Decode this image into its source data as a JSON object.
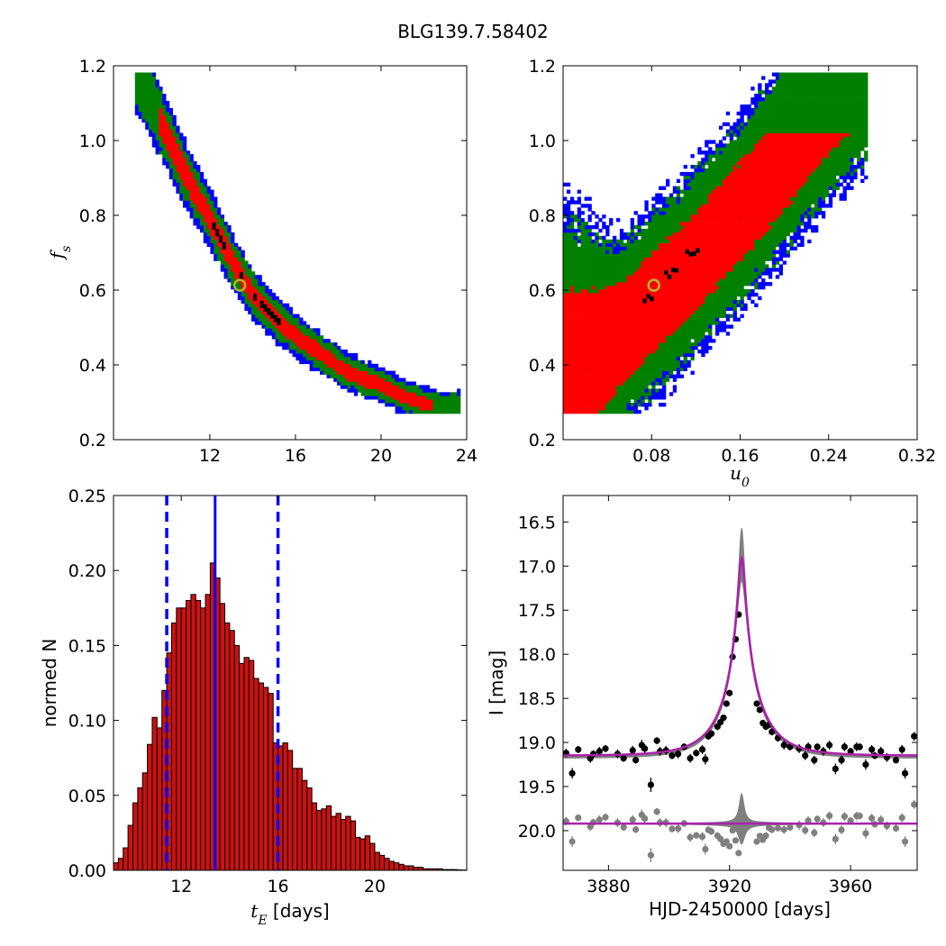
{
  "figure_title": "BLG139.7.58402",
  "colors": {
    "sigma1": "#ff0000",
    "sigma2": "#008000",
    "sigma3": "#0000ff",
    "best": "#000000",
    "marker_edge": "#b5b52a",
    "hist": "#cc1111",
    "median": "#0000ff",
    "model": "#aa22aa",
    "band": "#808080",
    "data": "#000000",
    "resid": "#808080"
  },
  "chart_data": [
    {
      "type": "heatmap",
      "panel": "top-left",
      "xlabel": "",
      "ylabel": "f_s",
      "xlim": [
        7.5,
        24
      ],
      "ylim": [
        0.2,
        1.2
      ],
      "xticks": [
        "12",
        "16",
        "20",
        "24"
      ],
      "yticks": [
        "0.2",
        "0.4",
        "0.6",
        "0.8",
        "1.0",
        "1.2"
      ],
      "relation": "f_s ≈ 0.000006·tE^3 + 0.0033·tE^2 − 0.1656·tE + 2.3044 (ridge)",
      "ridge_points": [
        [
          8.5,
          1.18
        ],
        [
          10.0,
          1.0
        ],
        [
          11.0,
          0.88
        ],
        [
          12.0,
          0.78
        ],
        [
          13.0,
          0.67
        ],
        [
          14.0,
          0.58
        ],
        [
          15.0,
          0.52
        ],
        [
          16.0,
          0.47
        ],
        [
          17.0,
          0.43
        ],
        [
          18.0,
          0.39
        ],
        [
          19.0,
          0.36
        ],
        [
          20.0,
          0.34
        ],
        [
          21.0,
          0.31
        ],
        [
          22.0,
          0.29
        ],
        [
          23.0,
          0.28
        ]
      ],
      "best_fit": {
        "tE": 13.4,
        "f_s": 0.613
      }
    },
    {
      "type": "heatmap",
      "panel": "top-right",
      "xlabel": "u_0",
      "ylabel": "",
      "xlim": [
        0.0,
        0.32
      ],
      "ylim": [
        0.2,
        1.2
      ],
      "xticks": [
        "0.08",
        "0.16",
        "0.24",
        "0.32"
      ],
      "yticks": [
        "0.2",
        "0.4",
        "0.6",
        "0.8",
        "1.0",
        "1.2"
      ],
      "ridge_points": [
        [
          0.0,
          0.36
        ],
        [
          0.04,
          0.45
        ],
        [
          0.08,
          0.56
        ],
        [
          0.12,
          0.68
        ],
        [
          0.16,
          0.81
        ],
        [
          0.2,
          0.95
        ],
        [
          0.24,
          1.1
        ],
        [
          0.27,
          1.18
        ]
      ],
      "best_fit": {
        "u0": 0.082,
        "f_s": 0.613
      }
    },
    {
      "type": "bar",
      "panel": "bottom-left",
      "xlabel": "t_E [days]",
      "ylabel": "normed N",
      "xlim": [
        9.2,
        23.8
      ],
      "ylim": [
        0.0,
        0.25
      ],
      "xticks": [
        "12",
        "16",
        "20"
      ],
      "yticks": [
        "0.00",
        "0.05",
        "0.10",
        "0.15",
        "0.20",
        "0.25"
      ],
      "bin_start": 9.2,
      "bin_width": 0.2,
      "values": [
        0.005,
        0.008,
        0.015,
        0.03,
        0.045,
        0.055,
        0.065,
        0.084,
        0.102,
        0.095,
        0.12,
        0.145,
        0.165,
        0.175,
        0.175,
        0.18,
        0.184,
        0.18,
        0.175,
        0.184,
        0.205,
        0.195,
        0.178,
        0.165,
        0.16,
        0.15,
        0.138,
        0.142,
        0.14,
        0.128,
        0.125,
        0.122,
        0.118,
        0.085,
        0.083,
        0.085,
        0.08,
        0.068,
        0.068,
        0.06,
        0.055,
        0.045,
        0.04,
        0.041,
        0.043,
        0.036,
        0.038,
        0.034,
        0.036,
        0.033,
        0.022,
        0.021,
        0.023,
        0.018,
        0.012,
        0.01,
        0.008,
        0.006,
        0.005,
        0.004,
        0.003,
        0.003,
        0.002,
        0.002,
        0.001,
        0.001,
        0.001,
        0.001,
        0.0005,
        0.0005,
        0.0005,
        0.0003,
        0.0002
      ],
      "median": 13.4,
      "interval": [
        11.4,
        16.0
      ]
    },
    {
      "type": "line",
      "panel": "bottom-right",
      "xlabel": "HJD-2450000 [days]",
      "ylabel": "I [mag]",
      "xlim": [
        3865,
        3982
      ],
      "ylim": [
        20.45,
        16.2
      ],
      "y_inverted": true,
      "xticks": [
        "3880",
        "3920",
        "3960"
      ],
      "yticks": [
        "16.5",
        "17.0",
        "17.5",
        "18.0",
        "18.5",
        "19.0",
        "19.5",
        "20.0"
      ],
      "model": {
        "t0": 3924.0,
        "tE": 13.4,
        "u0": 0.082,
        "f_s": 0.613,
        "baseline": 19.15,
        "peak": 16.93
      },
      "band_peak": 16.2,
      "residual_offset": 19.92,
      "observations": [
        [
          3866,
          19.12,
          0.05
        ],
        [
          3868,
          19.35,
          0.06
        ],
        [
          3870,
          19.08,
          0.04
        ],
        [
          3874,
          19.18,
          0.05
        ],
        [
          3875,
          19.13,
          0.04
        ],
        [
          3877,
          19.1,
          0.05
        ],
        [
          3879,
          19.07,
          0.04
        ],
        [
          3883,
          19.13,
          0.05
        ],
        [
          3885,
          19.18,
          0.04
        ],
        [
          3888,
          19.09,
          0.05
        ],
        [
          3889,
          19.2,
          0.04
        ],
        [
          3891,
          19.03,
          0.06
        ],
        [
          3892,
          19.07,
          0.05
        ],
        [
          3894,
          19.48,
          0.08
        ],
        [
          3896,
          18.98,
          0.04
        ],
        [
          3897,
          19.1,
          0.05
        ],
        [
          3899,
          19.09,
          0.05
        ],
        [
          3901,
          19.15,
          0.04
        ],
        [
          3903,
          19.13,
          0.05
        ],
        [
          3905,
          19.05,
          0.04
        ],
        [
          3907,
          19.18,
          0.05
        ],
        [
          3909,
          19.12,
          0.04
        ],
        [
          3911,
          19.08,
          0.05
        ],
        [
          3912,
          19.19,
          0.06
        ],
        [
          3913,
          18.93,
          0.04
        ],
        [
          3914,
          18.9,
          0.04
        ],
        [
          3916,
          18.82,
          0.04
        ],
        [
          3917,
          18.77,
          0.04
        ],
        [
          3918,
          18.72,
          0.03
        ],
        [
          3919,
          18.56,
          0.03
        ],
        [
          3920,
          18.44,
          0.03
        ],
        [
          3921,
          18.03,
          0.03
        ],
        [
          3922,
          17.83,
          0.03
        ],
        [
          3923,
          17.55,
          0.03
        ],
        [
          3929,
          18.56,
          0.03
        ],
        [
          3930,
          18.63,
          0.03
        ],
        [
          3931,
          18.78,
          0.03
        ],
        [
          3932,
          18.82,
          0.04
        ],
        [
          3933,
          18.8,
          0.04
        ],
        [
          3934,
          18.88,
          0.04
        ],
        [
          3936,
          18.95,
          0.04
        ],
        [
          3938,
          19.03,
          0.05
        ],
        [
          3940,
          19.05,
          0.04
        ],
        [
          3943,
          19.07,
          0.05
        ],
        [
          3945,
          19.15,
          0.05
        ],
        [
          3946,
          19.05,
          0.05
        ],
        [
          3948,
          19.2,
          0.05
        ],
        [
          3949,
          19.05,
          0.04
        ],
        [
          3951,
          19.1,
          0.05
        ],
        [
          3953,
          19.03,
          0.05
        ],
        [
          3955,
          19.3,
          0.06
        ],
        [
          3957,
          19.2,
          0.05
        ],
        [
          3958,
          19.05,
          0.05
        ],
        [
          3960,
          19.1,
          0.04
        ],
        [
          3962,
          19.05,
          0.05
        ],
        [
          3963,
          19.05,
          0.04
        ],
        [
          3965,
          19.25,
          0.06
        ],
        [
          3967,
          19.08,
          0.05
        ],
        [
          3968,
          19.15,
          0.04
        ],
        [
          3970,
          19.1,
          0.05
        ],
        [
          3972,
          19.17,
          0.05
        ],
        [
          3975,
          19.2,
          0.04
        ],
        [
          3977,
          19.08,
          0.05
        ],
        [
          3978,
          19.35,
          0.06
        ],
        [
          3981,
          18.93,
          0.05
        ]
      ]
    }
  ]
}
